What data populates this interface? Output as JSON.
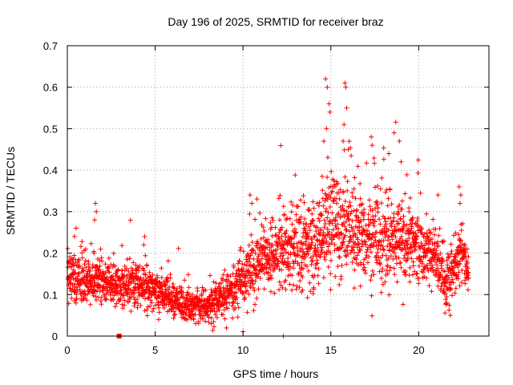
{
  "chart_data": {
    "type": "scatter",
    "title": "Day 196 of 2025, SRMTID for receiver braz",
    "xlabel": "GPS time / hours",
    "ylabel": "SRMTID / TECUs",
    "xlim": [
      0,
      24
    ],
    "ylim": [
      0,
      0.7
    ],
    "xticks": [
      "0",
      "5",
      "10",
      "15",
      "20"
    ],
    "yticks": [
      "0",
      "0.1",
      "0.2",
      "0.3",
      "0.4",
      "0.5",
      "0.6",
      "0.7"
    ],
    "grid": true,
    "marker": "plus",
    "color": "#ff0000",
    "series": [
      {
        "name": "SRMTID",
        "trend": {
          "x": [
            0,
            1,
            2,
            3,
            4,
            5,
            6,
            7,
            8,
            9,
            10,
            11,
            12,
            13,
            14,
            14.5,
            15,
            15.5,
            16,
            16.5,
            17,
            18,
            19,
            20,
            21,
            21.5,
            22,
            22.5,
            23
          ],
          "y": [
            0.14,
            0.13,
            0.13,
            0.12,
            0.12,
            0.11,
            0.09,
            0.07,
            0.07,
            0.1,
            0.14,
            0.18,
            0.2,
            0.21,
            0.22,
            0.25,
            0.28,
            0.25,
            0.26,
            0.23,
            0.23,
            0.24,
            0.23,
            0.21,
            0.2,
            0.13,
            0.17,
            0.2,
            0.12
          ]
        },
        "spread": {
          "x": [
            0,
            2,
            4,
            6,
            8,
            10,
            12,
            14,
            15,
            16,
            17,
            18,
            19,
            20,
            21,
            22,
            23
          ],
          "y": [
            0.04,
            0.035,
            0.035,
            0.025,
            0.025,
            0.045,
            0.06,
            0.07,
            0.09,
            0.08,
            0.07,
            0.07,
            0.065,
            0.055,
            0.05,
            0.05,
            0.03
          ]
        },
        "points": [
          {
            "x": 14.7,
            "y": 0.62
          },
          {
            "x": 14.8,
            "y": 0.6
          },
          {
            "x": 14.9,
            "y": 0.56
          },
          {
            "x": 14.95,
            "y": 0.54
          },
          {
            "x": 14.75,
            "y": 0.5
          },
          {
            "x": 14.6,
            "y": 0.47
          },
          {
            "x": 15.8,
            "y": 0.61
          },
          {
            "x": 15.85,
            "y": 0.6
          },
          {
            "x": 15.9,
            "y": 0.55
          },
          {
            "x": 15.75,
            "y": 0.51
          },
          {
            "x": 15.7,
            "y": 0.47
          },
          {
            "x": 16.0,
            "y": 0.45
          },
          {
            "x": 17.3,
            "y": 0.48
          },
          {
            "x": 17.35,
            "y": 0.46
          },
          {
            "x": 18.6,
            "y": 0.49
          },
          {
            "x": 18.9,
            "y": 0.47
          },
          {
            "x": 18.3,
            "y": 0.44
          },
          {
            "x": 19.0,
            "y": 0.42
          },
          {
            "x": 1.6,
            "y": 0.32
          },
          {
            "x": 1.65,
            "y": 0.3
          },
          {
            "x": 1.55,
            "y": 0.28
          },
          {
            "x": 0.5,
            "y": 0.26
          },
          {
            "x": 0.4,
            "y": 0.24
          },
          {
            "x": 4.4,
            "y": 0.24
          },
          {
            "x": 4.35,
            "y": 0.22
          },
          {
            "x": 21.1,
            "y": 0.34
          },
          {
            "x": 22.3,
            "y": 0.36
          },
          {
            "x": 22.4,
            "y": 0.34
          },
          {
            "x": 22.35,
            "y": 0.32
          },
          {
            "x": 21.8,
            "y": 0.05
          },
          {
            "x": 12.3,
            "y": 0.0
          },
          {
            "x": 5.2,
            "y": 0.04
          },
          {
            "x": 7.3,
            "y": 0.03
          },
          {
            "x": 8.2,
            "y": 0.03
          },
          {
            "x": 10.4,
            "y": 0.34
          },
          {
            "x": 10.5,
            "y": 0.32
          }
        ],
        "stacked_point": {
          "x": 2.95,
          "y": 0.0
        }
      }
    ]
  }
}
